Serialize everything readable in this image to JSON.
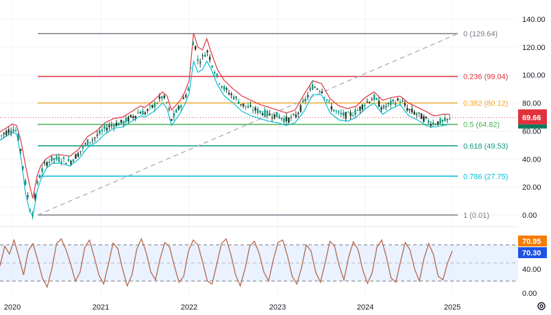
{
  "chart_data": [
    {
      "type": "line",
      "subtype": "candlestick-with-fibonacci-retracement",
      "x_tick_labels": [
        "2020",
        "2021",
        "2022",
        "2023",
        "2024",
        "2025"
      ],
      "y_tick_labels": [
        "140.00",
        "120.00",
        "100.00",
        "80.00",
        "60.00",
        "40.00",
        "20.00",
        "0.00"
      ],
      "ylim": [
        0,
        140
      ],
      "last_price": "69.66",
      "last_price_value": 69.66,
      "fibonacci_levels": [
        {
          "label": "0 (129.64)",
          "value": 129.64,
          "color": "#787b86"
        },
        {
          "label": "0.236 (99.04)",
          "value": 99.04,
          "color": "#e0313c"
        },
        {
          "label": "0.382 (80.12)",
          "value": 80.12,
          "color": "#f0a92a"
        },
        {
          "label": "0.5 (64.82)",
          "value": 64.82,
          "color": "#4caf50"
        },
        {
          "label": "0.618 (49.53)",
          "value": 49.53,
          "color": "#089981"
        },
        {
          "label": "0.786 (27.75)",
          "value": 27.75,
          "color": "#00bcd4"
        },
        {
          "label": "1 (0.01)",
          "value": 0.01,
          "color": "#787b86"
        }
      ],
      "trend_line": {
        "from_value": 0.01,
        "to_value": 129.64,
        "color": "#b2b5be"
      },
      "price_series": {
        "name": "",
        "color": "#1e6b3c",
        "x": [
          2019.85,
          2019.95,
          2020.0,
          2020.05,
          2020.1,
          2020.15,
          2020.2,
          2020.23,
          2020.25,
          2020.28,
          2020.32,
          2020.38,
          2020.45,
          2020.55,
          2020.65,
          2020.75,
          2020.85,
          2020.95,
          2021.05,
          2021.15,
          2021.25,
          2021.35,
          2021.45,
          2021.5,
          2021.6,
          2021.7,
          2021.75,
          2021.8,
          2021.9,
          2021.95,
          2022.0,
          2022.05,
          2022.1,
          2022.15,
          2022.2,
          2022.25,
          2022.32,
          2022.4,
          2022.5,
          2022.6,
          2022.7,
          2022.8,
          2022.9,
          2023.0,
          2023.1,
          2023.2,
          2023.3,
          2023.4,
          2023.5,
          2023.6,
          2023.7,
          2023.8,
          2023.9,
          2024.0,
          2024.1,
          2024.2,
          2024.3,
          2024.4,
          2024.5,
          2024.6,
          2024.7,
          2024.75,
          2024.8,
          2024.9,
          2024.97
        ],
        "y": [
          56,
          60,
          62,
          60,
          45,
          22,
          5,
          1,
          10,
          22,
          30,
          37,
          40,
          40,
          38,
          44,
          52,
          56,
          62,
          65,
          66,
          70,
          74,
          73,
          78,
          85,
          80,
          68,
          78,
          84,
          92,
          128,
          110,
          112,
          118,
          110,
          98,
          90,
          85,
          79,
          76,
          74,
          72,
          71,
          68,
          70,
          80,
          92,
          90,
          78,
          72,
          71,
          74,
          80,
          84,
          76,
          80,
          82,
          75,
          72,
          68,
          66,
          66,
          67,
          68
        ]
      },
      "upper_band": {
        "name": "",
        "color": "#e0313c",
        "y": [
          59,
          63,
          65,
          64,
          52,
          35,
          20,
          12,
          18,
          28,
          35,
          40,
          43,
          43,
          42,
          47,
          56,
          60,
          66,
          69,
          70,
          74,
          78,
          77,
          82,
          88,
          85,
          75,
          82,
          88,
          96,
          130,
          120,
          118,
          126,
          116,
          104,
          96,
          90,
          85,
          82,
          79,
          77,
          75,
          73,
          75,
          86,
          96,
          94,
          83,
          78,
          76,
          78,
          84,
          88,
          82,
          84,
          85,
          80,
          77,
          74,
          72,
          71,
          72,
          72
        ]
      },
      "lower_band": {
        "name": "",
        "color": "#00bcd4",
        "y": [
          53,
          57,
          59,
          58,
          40,
          15,
          2,
          0,
          5,
          17,
          25,
          33,
          37,
          37,
          35,
          40,
          48,
          52,
          58,
          62,
          63,
          67,
          71,
          70,
          74,
          80,
          76,
          64,
          73,
          79,
          87,
          110,
          102,
          104,
          110,
          104,
          93,
          85,
          80,
          74,
          71,
          69,
          67,
          66,
          64,
          66,
          74,
          86,
          86,
          73,
          68,
          67,
          70,
          76,
          80,
          72,
          76,
          79,
          71,
          68,
          64,
          63,
          63,
          64,
          65
        ]
      }
    },
    {
      "type": "line",
      "subtype": "oscillator",
      "y_tick_labels": [
        "40.00",
        "0.00"
      ],
      "ylim": [
        0,
        100
      ],
      "badges": [
        {
          "label": "70.95",
          "value": 70.95,
          "color": "#f57c00"
        },
        {
          "label": "70.30",
          "value": 70.3,
          "color": "#1e53e5"
        }
      ],
      "band": {
        "upper": 80,
        "middle": 50,
        "lower": 20,
        "fill": "#dbeafe"
      },
      "series": {
        "name": "",
        "color": "#b5654d",
        "values": [
          45,
          78,
          65,
          88,
          60,
          30,
          70,
          82,
          55,
          25,
          10,
          40,
          82,
          90,
          72,
          48,
          20,
          35,
          76,
          88,
          60,
          30,
          15,
          48,
          83,
          74,
          40,
          12,
          30,
          72,
          90,
          68,
          35,
          22,
          58,
          84,
          76,
          45,
          18,
          28,
          70,
          88,
          80,
          52,
          20,
          15,
          48,
          82,
          90,
          64,
          30,
          12,
          40,
          78,
          86,
          66,
          35,
          20,
          55,
          84,
          88,
          62,
          28,
          15,
          42,
          80,
          70,
          35,
          18,
          50,
          86,
          78,
          45,
          22,
          60,
          85,
          72,
          38,
          16,
          34,
          76,
          88,
          60,
          25,
          18,
          52,
          84,
          72,
          40,
          20,
          58,
          82,
          64,
          28,
          22,
          50,
          70
        ]
      }
    }
  ],
  "icons": {
    "settings": "settings-gear-icon"
  }
}
